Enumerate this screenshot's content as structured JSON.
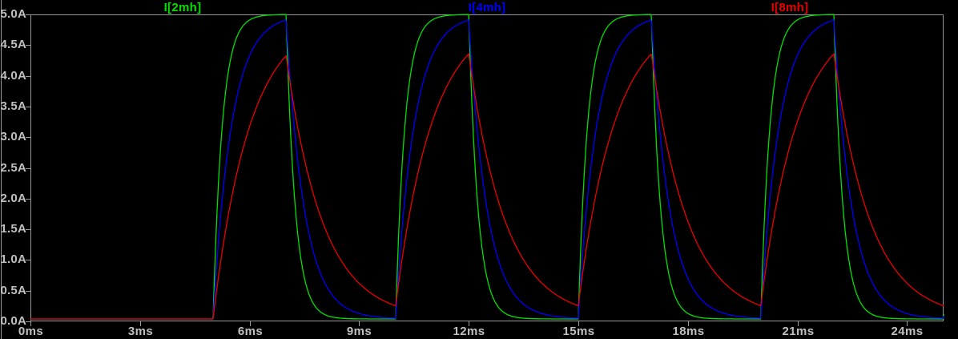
{
  "colors": {
    "background": "#000000",
    "plot_border": "#9a9a9a",
    "tick_text": "#c0c0c0",
    "pane_divider": "#9a9a9a"
  },
  "chart_data": {
    "type": "line",
    "waveform": "RL inductor current, periodic pulse charge/discharge (exponential rise toward 5A while pulse on, exponential decay toward 0A while off)",
    "legend_position": "top",
    "grid": "border and ticks only, no interior gridlines",
    "x_axis": {
      "unit": "ms",
      "min_ms": 0,
      "max_ms": 25,
      "tick_step_ms": 3,
      "tick_labels": [
        "0ms",
        "3ms",
        "6ms",
        "9ms",
        "12ms",
        "15ms",
        "18ms",
        "21ms",
        "24ms"
      ]
    },
    "y_axis": {
      "unit": "A",
      "min_A": 0,
      "max_A": 5,
      "tick_step_A": 0.5,
      "tick_labels_bottom_to_top": [
        "0.0A",
        "0.5A",
        "1.0A",
        "1.5A",
        "2.0A",
        "2.5A",
        "3.0A",
        "3.5A",
        "4.0A",
        "4.5A",
        "5.0A"
      ]
    },
    "stimulus": {
      "pulse_start_ms": 5,
      "pulse_period_ms": 5,
      "pulse_on_ms": 2,
      "pulse_times_on_ms": [
        [
          5,
          7
        ],
        [
          10,
          12
        ],
        [
          15,
          17
        ],
        [
          20,
          22
        ]
      ],
      "steady_state_current_A": 5
    },
    "series": [
      {
        "name": "I[2mh]",
        "color": "#00e100",
        "inductance_label": "2mh",
        "tau_ms": 0.25,
        "value_at_pulse_end_A": 5.0,
        "value_at_next_pulse_start_A": 0.0
      },
      {
        "name": "I[4mh]",
        "color": "#0000ff",
        "inductance_label": "4mh",
        "tau_ms": 0.5,
        "value_at_pulse_end_A": 4.9,
        "value_at_next_pulse_start_A": 0.0
      },
      {
        "name": "I[8mh]",
        "color": "#eb0000",
        "inductance_label": "8mh",
        "tau_ms": 1.0,
        "value_at_pulse_end_A": 4.3,
        "value_at_next_pulse_start_A": 0.25
      }
    ]
  }
}
